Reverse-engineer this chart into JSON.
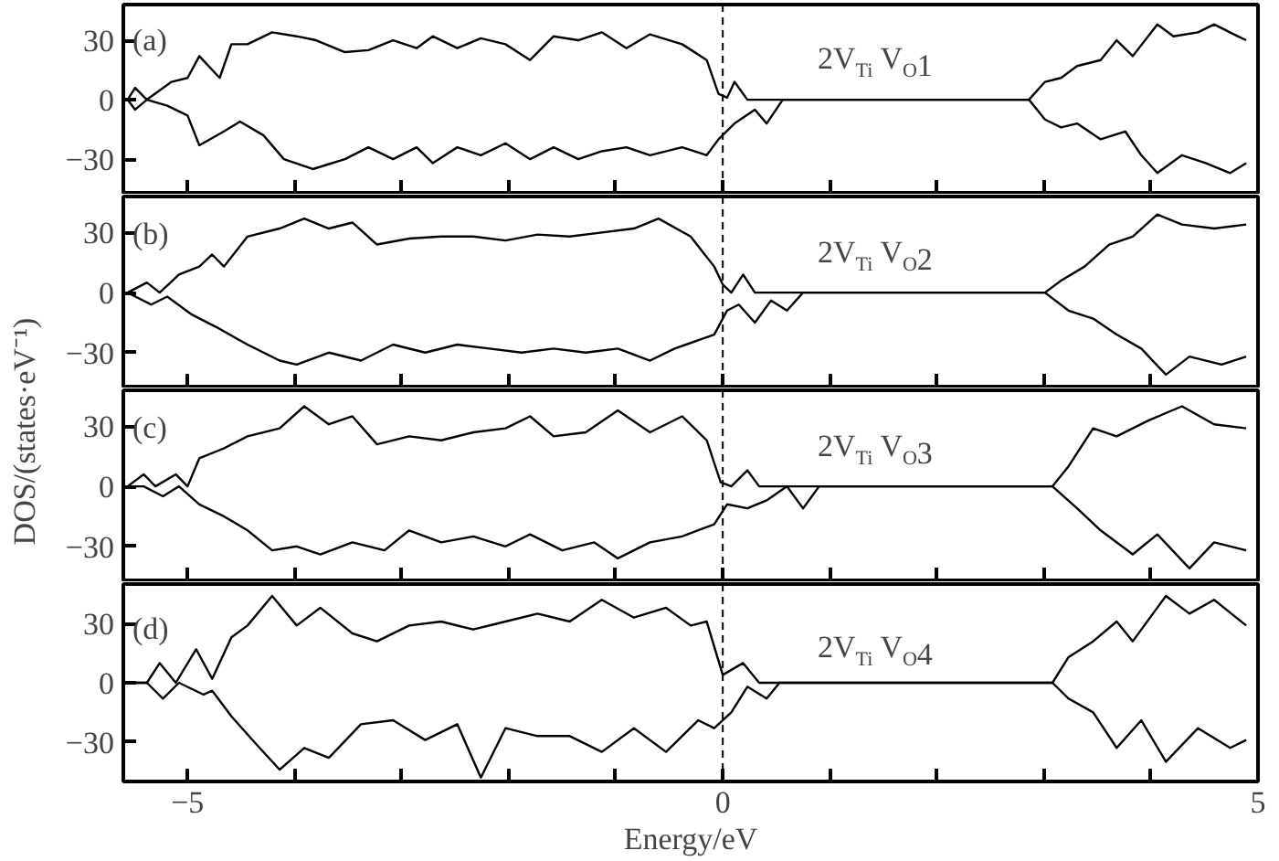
{
  "chart_data": [
    {
      "type": "line",
      "annotations": [
        "(a)",
        "2V$_{Ti}$V$_{O}$1"
      ],
      "ylabel": "DOS/(states·eV⁻¹)",
      "xlim": [
        -5.6,
        5.0
      ],
      "ylim": [
        -47,
        48
      ],
      "yticks": [
        -30,
        0,
        30
      ],
      "xticks": [
        -5,
        {
          "value": -4,
          "label": null
        },
        {
          "value": -3,
          "label": null
        },
        {
          "value": -2,
          "label": null
        },
        {
          "value": -1,
          "label": null
        },
        0,
        {
          "value": 1,
          "label": null
        },
        {
          "value": 2,
          "label": null
        },
        {
          "value": 3,
          "label": null
        },
        {
          "value": 4,
          "label": null
        },
        5
      ],
      "tick_labels": "y",
      "grid": false,
      "ref_lines": [
        {
          "axis": "x",
          "value": 0,
          "color": "#000000",
          "line_style": "dashed"
        }
      ],
      "series": [
        {
          "color": "#000000",
          "x": [
            -5.56,
            -5.49,
            -5.38,
            -5.15,
            -5.0,
            -4.89,
            -4.7,
            -4.59,
            -4.44,
            -4.21,
            -3.98,
            -3.8,
            -3.53,
            -3.31,
            -3.08,
            -2.86,
            -2.71,
            -2.48,
            -2.26,
            -2.03,
            -1.8,
            -1.58,
            -1.35,
            -1.13,
            -0.9,
            -0.68,
            -0.38,
            -0.15,
            -0.04,
            0.04,
            0.11,
            0.23,
            2.86,
            3.01,
            3.16,
            3.31,
            3.53,
            3.68,
            3.83,
            4.06,
            4.21,
            4.44,
            4.59,
            4.81,
            4.89
          ],
          "values": [
            0,
            6,
            0,
            9,
            11,
            22,
            11,
            28,
            28,
            34,
            32,
            30,
            24,
            25,
            30,
            26,
            32,
            26,
            31,
            28,
            20,
            32,
            30,
            34,
            26,
            33,
            28,
            20,
            3,
            1,
            9,
            0,
            0,
            9,
            11,
            17,
            20,
            30,
            22,
            38,
            32,
            34,
            38,
            32,
            30
          ]
        },
        {
          "color": "#000000",
          "x": [
            -5.56,
            -5.49,
            -5.38,
            -5.19,
            -5.0,
            -4.89,
            -4.66,
            -4.51,
            -4.29,
            -4.1,
            -3.83,
            -3.53,
            -3.31,
            -3.08,
            -2.86,
            -2.71,
            -2.48,
            -2.26,
            -2.03,
            -1.8,
            -1.58,
            -1.35,
            -1.13,
            -0.9,
            -0.68,
            -0.38,
            -0.15,
            -0.04,
            0.11,
            0.3,
            0.41,
            0.56,
            2.86,
            3.01,
            3.16,
            3.31,
            3.53,
            3.76,
            3.91,
            4.06,
            4.29,
            4.51,
            4.74,
            4.89
          ],
          "values": [
            0,
            -5,
            0,
            -3,
            -8,
            -23,
            -16,
            -11,
            -18,
            -30,
            -35,
            -30,
            -24,
            -30,
            -24,
            -32,
            -24,
            -28,
            -22,
            -30,
            -24,
            -30,
            -26,
            -24,
            -28,
            -24,
            -28,
            -20,
            -12,
            -5,
            -12,
            0,
            0,
            -10,
            -14,
            -12,
            -20,
            -16,
            -28,
            -37,
            -28,
            -32,
            -37,
            -32
          ]
        }
      ]
    },
    {
      "type": "line",
      "annotations": [
        "(b)",
        "2V$_{Ti}$V$_{O}$2"
      ],
      "xlim": [
        -5.6,
        5.0
      ],
      "ylim": [
        -47,
        48
      ],
      "yticks": [
        -30,
        0,
        30
      ],
      "xticks": [
        -5,
        {
          "value": -4,
          "label": null
        },
        {
          "value": -3,
          "label": null
        },
        {
          "value": -2,
          "label": null
        },
        {
          "value": -1,
          "label": null
        },
        0,
        {
          "value": 1,
          "label": null
        },
        {
          "value": 2,
          "label": null
        },
        {
          "value": 3,
          "label": null
        },
        {
          "value": 4,
          "label": null
        },
        5
      ],
      "tick_labels": "y",
      "grid": false,
      "ref_lines": [
        {
          "axis": "x",
          "value": 0,
          "color": "#000000",
          "line_style": "dashed"
        }
      ],
      "series": [
        {
          "color": "#000000",
          "x": [
            -5.56,
            -5.38,
            -5.26,
            -5.08,
            -4.89,
            -4.77,
            -4.66,
            -4.44,
            -4.14,
            -3.91,
            -3.68,
            -3.46,
            -3.23,
            -2.93,
            -2.63,
            -2.33,
            -2.03,
            -1.73,
            -1.43,
            -1.13,
            -0.83,
            -0.6,
            -0.3,
            -0.08,
            0.0,
            0.08,
            0.19,
            0.3,
            3.01,
            3.16,
            3.38,
            3.61,
            3.83,
            4.06,
            4.29,
            4.59,
            4.89
          ],
          "values": [
            0,
            5,
            0,
            9,
            13,
            19,
            13,
            28,
            32,
            37,
            32,
            35,
            24,
            27,
            28,
            28,
            26,
            29,
            28,
            30,
            32,
            37,
            28,
            13,
            4,
            0,
            9,
            0,
            0,
            6,
            13,
            24,
            28,
            39,
            34,
            32,
            34
          ]
        },
        {
          "color": "#000000",
          "x": [
            -5.56,
            -5.34,
            -5.19,
            -4.96,
            -4.74,
            -4.44,
            -4.14,
            -3.98,
            -3.68,
            -3.38,
            -3.08,
            -2.78,
            -2.48,
            -2.18,
            -1.88,
            -1.58,
            -1.28,
            -0.98,
            -0.68,
            -0.45,
            -0.08,
            0.04,
            0.15,
            0.3,
            0.45,
            0.6,
            0.75,
            3.01,
            3.23,
            3.46,
            3.68,
            3.91,
            4.14,
            4.36,
            4.66,
            4.89
          ],
          "values": [
            0,
            -6,
            -2,
            -11,
            -17,
            -26,
            -34,
            -36,
            -30,
            -34,
            -26,
            -30,
            -26,
            -28,
            -30,
            -28,
            -30,
            -28,
            -34,
            -28,
            -21,
            -9,
            -6,
            -15,
            -4,
            -9,
            0,
            0,
            -9,
            -13,
            -21,
            -28,
            -41,
            -32,
            -36,
            -32
          ]
        }
      ]
    },
    {
      "type": "line",
      "annotations": [
        "(c)",
        "2V$_{Ti}$V$_{O}$3"
      ],
      "xlim": [
        -5.6,
        5.0
      ],
      "ylim": [
        -47,
        48
      ],
      "yticks": [
        -30,
        0,
        30
      ],
      "xticks": [
        -5,
        {
          "value": -4,
          "label": null
        },
        {
          "value": -3,
          "label": null
        },
        {
          "value": -2,
          "label": null
        },
        {
          "value": -1,
          "label": null
        },
        0,
        {
          "value": 1,
          "label": null
        },
        {
          "value": 2,
          "label": null
        },
        {
          "value": 3,
          "label": null
        },
        {
          "value": 4,
          "label": null
        },
        5
      ],
      "tick_labels": "y",
      "grid": false,
      "ref_lines": [
        {
          "axis": "x",
          "value": 0,
          "color": "#000000",
          "line_style": "dashed"
        }
      ],
      "series": [
        {
          "color": "#000000",
          "x": [
            -5.56,
            -5.41,
            -5.3,
            -5.11,
            -5.0,
            -4.89,
            -4.66,
            -4.44,
            -4.14,
            -3.91,
            -3.68,
            -3.46,
            -3.23,
            -2.93,
            -2.63,
            -2.33,
            -2.03,
            -1.8,
            -1.58,
            -1.28,
            -0.98,
            -0.68,
            -0.38,
            -0.15,
            -0.02,
            0.08,
            0.23,
            0.34,
            3.08,
            3.23,
            3.46,
            3.68,
            3.98,
            4.29,
            4.59,
            4.89
          ],
          "values": [
            0,
            6,
            0,
            6,
            0,
            14,
            19,
            25,
            29,
            40,
            31,
            35,
            21,
            25,
            23,
            27,
            29,
            35,
            25,
            27,
            38,
            27,
            35,
            23,
            2,
            0,
            8,
            0,
            0,
            10,
            29,
            25,
            33,
            40,
            31,
            29
          ]
        },
        {
          "color": "#000000",
          "x": [
            -5.56,
            -5.41,
            -5.23,
            -5.08,
            -4.89,
            -4.66,
            -4.44,
            -4.21,
            -3.98,
            -3.76,
            -3.46,
            -3.16,
            -2.93,
            -2.63,
            -2.33,
            -2.03,
            -1.8,
            -1.5,
            -1.2,
            -0.98,
            -0.68,
            -0.38,
            -0.08,
            0.04,
            0.23,
            0.41,
            0.6,
            0.75,
            0.9,
            3.08,
            3.31,
            3.53,
            3.83,
            4.06,
            4.36,
            4.59,
            4.89
          ],
          "values": [
            0,
            0,
            -5,
            0,
            -9,
            -15,
            -22,
            -32,
            -30,
            -34,
            -28,
            -32,
            -22,
            -28,
            -25,
            -30,
            -24,
            -32,
            -28,
            -36,
            -28,
            -25,
            -19,
            -9,
            -11,
            -7,
            0,
            -11,
            0,
            0,
            -11,
            -22,
            -34,
            -24,
            -41,
            -28,
            -32
          ]
        }
      ]
    },
    {
      "type": "line",
      "annotations": [
        "(d)",
        "2V$_{Ti}$V$_{O}$4"
      ],
      "xlabel": "Energy/eV",
      "xlim": [
        -5.6,
        5.0
      ],
      "ylim": [
        -50,
        50
      ],
      "yticks": [
        -30,
        0,
        30
      ],
      "xticks": [
        -5,
        {
          "value": -4,
          "label": null
        },
        {
          "value": -3,
          "label": null
        },
        {
          "value": -2,
          "label": null
        },
        {
          "value": -1,
          "label": null
        },
        0,
        {
          "value": 1,
          "label": null
        },
        {
          "value": 2,
          "label": null
        },
        {
          "value": 3,
          "label": null
        },
        {
          "value": 4,
          "label": null
        },
        5
      ],
      "grid": false,
      "ref_lines": [
        {
          "axis": "x",
          "value": 0,
          "color": "#000000",
          "line_style": "dashed"
        }
      ],
      "series": [
        {
          "color": "#000000",
          "x": [
            -5.56,
            -5.38,
            -5.26,
            -5.11,
            -4.92,
            -4.77,
            -4.59,
            -4.44,
            -4.21,
            -3.98,
            -3.76,
            -3.46,
            -3.23,
            -2.93,
            -2.63,
            -2.33,
            -2.03,
            -1.73,
            -1.43,
            -1.13,
            -0.83,
            -0.53,
            -0.3,
            -0.15,
            0.0,
            0.19,
            0.34,
            3.08,
            3.23,
            3.46,
            3.68,
            3.83,
            4.14,
            4.36,
            4.59,
            4.89
          ],
          "values": [
            0,
            0,
            10,
            0,
            17,
            2,
            23,
            29,
            44,
            29,
            38,
            25,
            21,
            29,
            31,
            27,
            31,
            35,
            31,
            42,
            33,
            38,
            29,
            31,
            4,
            10,
            0,
            0,
            13,
            21,
            31,
            21,
            44,
            35,
            42,
            29
          ]
        },
        {
          "color": "#000000",
          "x": [
            -5.56,
            -5.38,
            -5.23,
            -5.08,
            -4.85,
            -4.77,
            -4.59,
            -4.36,
            -4.14,
            -3.91,
            -3.68,
            -3.38,
            -3.08,
            -2.78,
            -2.48,
            -2.26,
            -2.03,
            -1.73,
            -1.43,
            -1.13,
            -0.83,
            -0.53,
            -0.23,
            -0.08,
            0.08,
            0.23,
            0.41,
            0.53,
            3.08,
            3.23,
            3.46,
            3.68,
            3.91,
            4.14,
            4.44,
            4.74,
            4.89
          ],
          "values": [
            0,
            0,
            -8,
            0,
            -6,
            -4,
            -17,
            -31,
            -44,
            -33,
            -38,
            -21,
            -19,
            -29,
            -21,
            -48,
            -23,
            -27,
            -27,
            -35,
            -23,
            -35,
            -19,
            -23,
            -15,
            -2,
            -8,
            0,
            0,
            -8,
            -15,
            -33,
            -19,
            -40,
            -23,
            -33,
            -29
          ]
        }
      ]
    }
  ]
}
